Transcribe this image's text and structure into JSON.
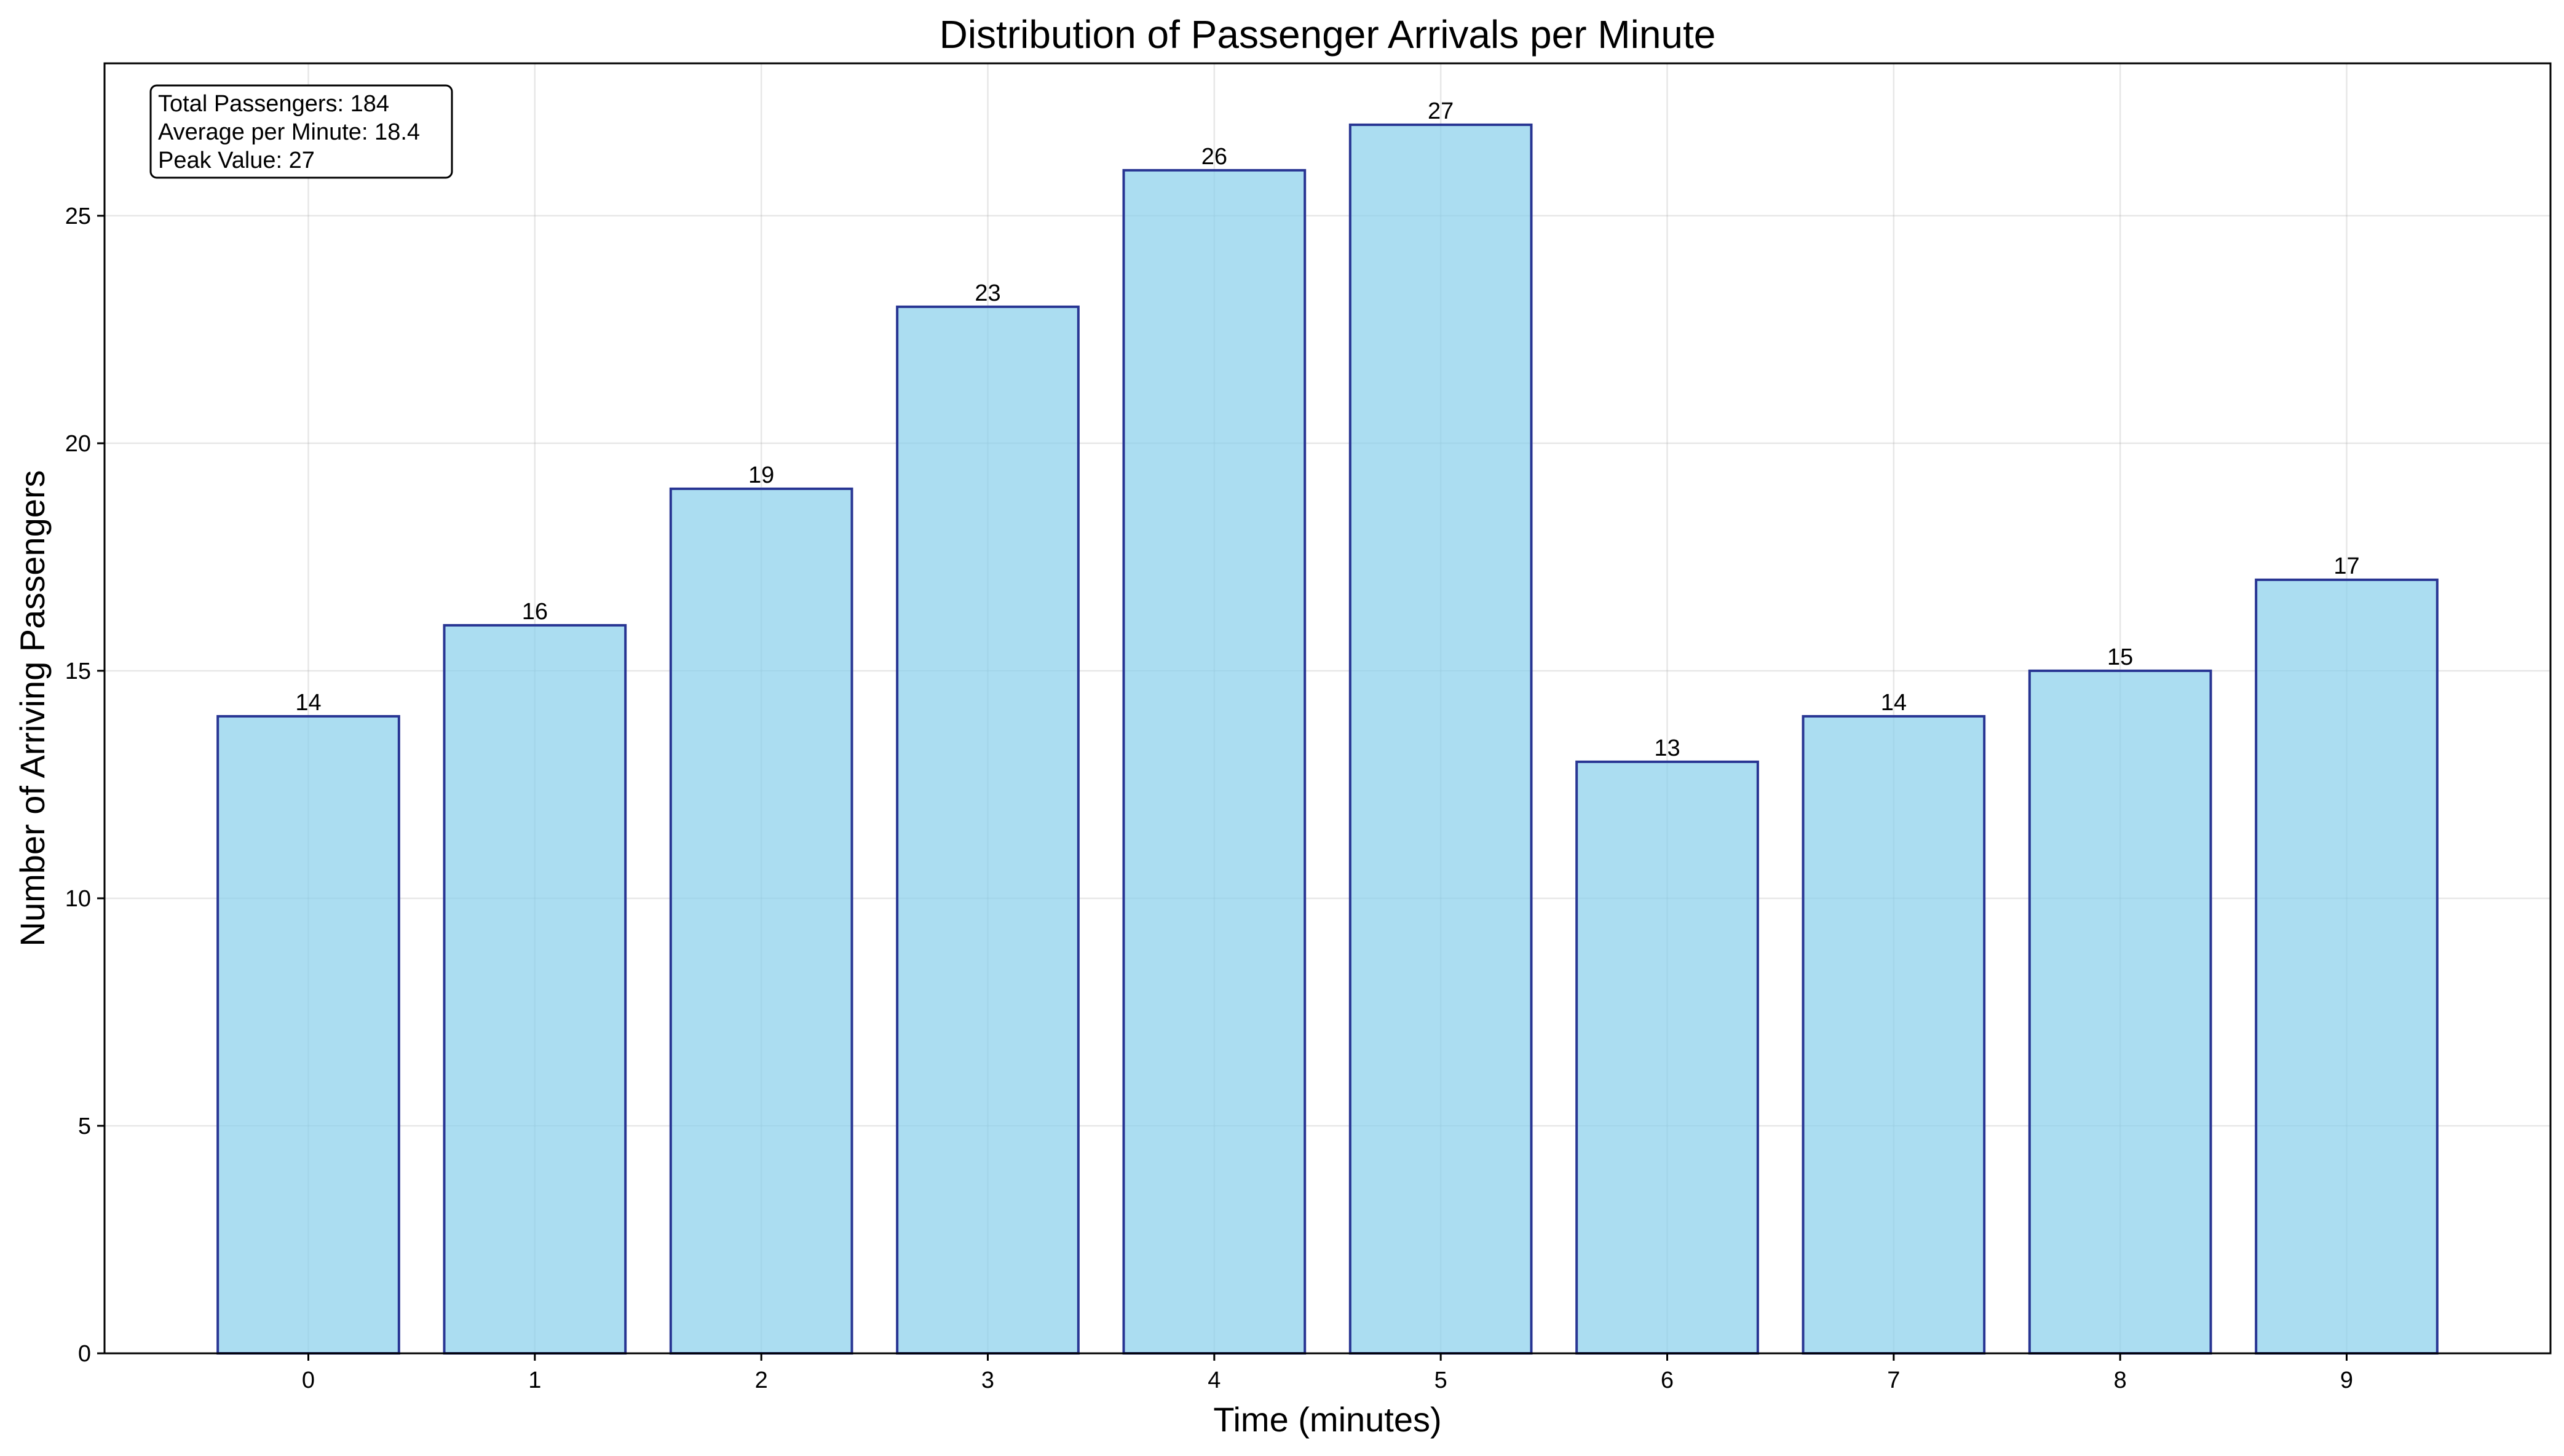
{
  "chart_data": {
    "type": "bar",
    "title": "Distribution of Passenger Arrivals per Minute",
    "xlabel": "Time (minutes)",
    "ylabel": "Number of Arriving Passengers",
    "categories": [
      "0",
      "1",
      "2",
      "3",
      "4",
      "5",
      "6",
      "7",
      "8",
      "9"
    ],
    "values": [
      14,
      16,
      19,
      23,
      26,
      27,
      13,
      14,
      15,
      17
    ],
    "ylim": [
      0,
      28.35
    ],
    "yticks": [
      0,
      5,
      10,
      15,
      20,
      25
    ],
    "grid": true,
    "data_labels": true,
    "annotation": {
      "placement": "top-left",
      "lines": [
        "Total Passengers: 184",
        "Average per Minute: 18.4",
        "Peak Value: 27"
      ]
    },
    "colors": {
      "bar_fill": "#87ceeb",
      "bar_fill_opacity": 0.7,
      "bar_edge": "#283593",
      "grid": "#b0b0b0",
      "axes": "#000000"
    }
  }
}
